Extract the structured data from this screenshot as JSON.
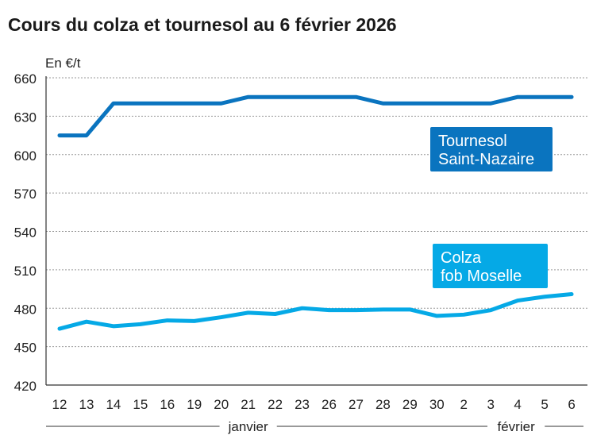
{
  "title": "Cours du colza et tournesol au 6 février 2026",
  "chart_data": {
    "type": "line",
    "title": "Cours du colza et tournesol au 6 février 2026",
    "ylabel": "En €/t",
    "xlabel": "",
    "ylim": [
      420,
      660
    ],
    "yticks": [
      420,
      450,
      480,
      510,
      540,
      570,
      600,
      630,
      660
    ],
    "grid": "horizontal dotted",
    "categories": [
      "12",
      "13",
      "14",
      "15",
      "16",
      "19",
      "20",
      "21",
      "22",
      "23",
      "26",
      "27",
      "28",
      "29",
      "30",
      "2",
      "3",
      "4",
      "5",
      "6"
    ],
    "month_groups": [
      {
        "label": "janvier",
        "from": "12",
        "to": "30"
      },
      {
        "label": "février",
        "from": "2",
        "to": "6"
      }
    ],
    "series": [
      {
        "name": "Tournesol Saint-Nazaire",
        "color": "#0a74bf",
        "values": [
          615,
          615,
          640,
          640,
          640,
          640,
          640,
          645,
          645,
          645,
          645,
          645,
          640,
          640,
          640,
          640,
          640,
          645,
          645,
          645
        ]
      },
      {
        "name": "Colza fob Moselle",
        "color": "#05a9e6",
        "values": [
          464,
          469.5,
          466,
          467.5,
          470.5,
          470,
          473,
          476.5,
          475.5,
          480,
          478.5,
          478.5,
          479,
          479,
          474,
          475,
          478.5,
          486,
          489,
          491
        ]
      }
    ],
    "series_labels": [
      [
        "Tournesol",
        "Saint-Nazaire"
      ],
      [
        "Colza",
        "fob Moselle"
      ]
    ]
  }
}
